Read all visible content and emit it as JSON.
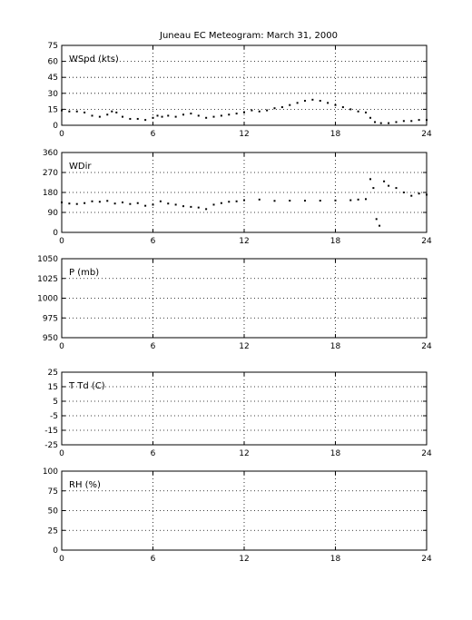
{
  "title": "Juneau EC Meteogram:      March 31, 2000",
  "chart_data": [
    {
      "type": "scatter",
      "label": "WSpd (kts)",
      "xlim": [
        0,
        24
      ],
      "xticks": [
        0,
        6,
        12,
        18,
        24
      ],
      "ylim": [
        0,
        75
      ],
      "yticks": [
        0,
        15,
        30,
        45,
        60,
        75
      ],
      "grid": true,
      "marker_color": "#000000",
      "series": [
        {
          "x": [
            0,
            0.5,
            1,
            1.5,
            2,
            2.5,
            3,
            3.3,
            3.6,
            4,
            4.5,
            5,
            5.5,
            6,
            6.3,
            6.6,
            7,
            7.5,
            8,
            8.5,
            9,
            9.5,
            10,
            10.5,
            11,
            11.5,
            12,
            12.5,
            13,
            13.5,
            14,
            14.5,
            15,
            15.5,
            16,
            16.5,
            17,
            17.5,
            18,
            18.5,
            19,
            19.5,
            20,
            20.3,
            20.6,
            21,
            21.5,
            22,
            22.5,
            23,
            23.5,
            24
          ],
          "y": [
            14,
            13,
            13,
            12,
            9,
            8,
            10,
            13,
            12,
            8,
            6,
            6,
            5,
            7,
            9,
            8,
            9,
            8,
            10,
            11,
            9,
            7,
            8,
            9,
            10,
            11,
            12,
            14,
            13,
            14,
            16,
            17,
            19,
            21,
            23,
            24,
            23,
            21,
            19,
            17,
            15,
            13,
            12,
            7,
            3,
            2,
            2,
            3,
            4,
            4,
            5,
            5
          ]
        }
      ]
    },
    {
      "type": "scatter",
      "label": "WDir",
      "xlim": [
        0,
        24
      ],
      "xticks": [
        0,
        6,
        12,
        18,
        24
      ],
      "ylim": [
        0,
        360
      ],
      "yticks": [
        0,
        90,
        180,
        270,
        360
      ],
      "grid": true,
      "marker_color": "#000000",
      "series": [
        {
          "x": [
            0,
            0.5,
            1,
            1.5,
            2,
            2.5,
            3,
            3.5,
            4,
            4.5,
            5,
            5.5,
            6,
            6.5,
            7,
            7.5,
            8,
            8.5,
            9,
            9.5,
            10,
            10.5,
            11,
            11.5,
            12,
            13,
            14,
            15,
            16,
            17,
            18,
            19,
            19.5,
            20,
            20.3,
            20.5,
            20.7,
            20.9,
            21.2,
            21.5,
            22,
            22.5,
            23,
            23.5,
            24
          ],
          "y": [
            135,
            130,
            128,
            132,
            140,
            138,
            142,
            130,
            135,
            128,
            132,
            120,
            125,
            140,
            130,
            125,
            118,
            115,
            112,
            105,
            125,
            132,
            138,
            140,
            145,
            148,
            142,
            143,
            143,
            143,
            144,
            145,
            148,
            150,
            240,
            200,
            60,
            30,
            230,
            210,
            200,
            180,
            165,
            175,
            170
          ]
        }
      ]
    },
    {
      "type": "scatter",
      "label": "P (mb)",
      "xlim": [
        0,
        24
      ],
      "xticks": [
        0,
        6,
        12,
        18,
        24
      ],
      "ylim": [
        950,
        1050
      ],
      "yticks": [
        950,
        975,
        1000,
        1025,
        1050
      ],
      "grid": true,
      "series": []
    },
    {
      "type": "scatter",
      "label": "T Td (C)",
      "xlim": [
        0,
        24
      ],
      "xticks": [
        0,
        6,
        12,
        18,
        24
      ],
      "ylim": [
        -25,
        25
      ],
      "yticks": [
        -25,
        -15,
        -5,
        5,
        15,
        25
      ],
      "grid": true,
      "series": []
    },
    {
      "type": "scatter",
      "label": "RH (%)",
      "xlim": [
        0,
        24
      ],
      "xticks": [
        0,
        6,
        12,
        18,
        24
      ],
      "ylim": [
        0,
        100
      ],
      "yticks": [
        0,
        25,
        50,
        75,
        100
      ],
      "grid": true,
      "series": []
    }
  ]
}
